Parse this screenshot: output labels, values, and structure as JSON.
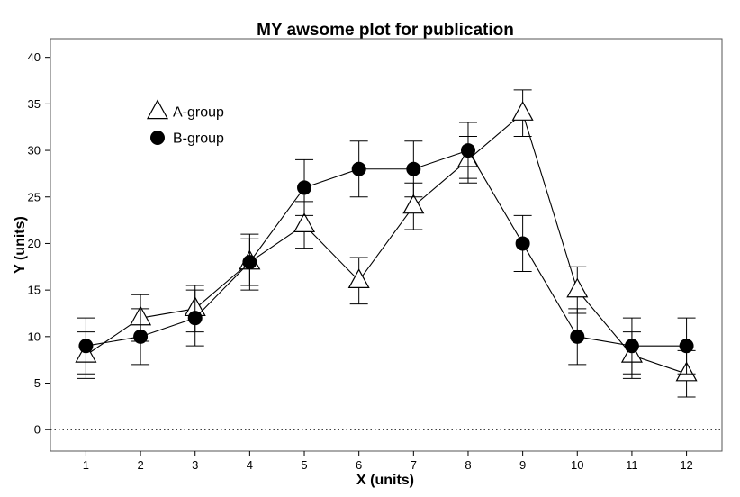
{
  "chart_data": {
    "type": "line",
    "title": "MY awsome plot for publication",
    "xlabel": "X (units)",
    "ylabel": "Y (units)",
    "x": [
      1,
      2,
      3,
      4,
      5,
      6,
      7,
      8,
      9,
      10,
      11,
      12
    ],
    "x_tick_labels": [
      "1",
      "2",
      "3",
      "4",
      "5",
      "6",
      "7",
      "8",
      "9",
      "10",
      "11",
      "12"
    ],
    "xlim": [
      0.35,
      12.65
    ],
    "ylim": [
      -2.3,
      42
    ],
    "y_ticks": [
      0,
      5,
      10,
      15,
      20,
      25,
      30,
      35,
      40
    ],
    "y_tick_labels": [
      "0",
      "5",
      "10",
      "15",
      "20",
      "25",
      "30",
      "35",
      "40"
    ],
    "reference_line": {
      "y": 0,
      "style": "dotted"
    },
    "grid": false,
    "legend_position": "top-left",
    "series": [
      {
        "name": "A-group",
        "marker": "open-triangle",
        "values": [
          8,
          12,
          13,
          18,
          22,
          16,
          24,
          29,
          34,
          15,
          8,
          6
        ],
        "error": [
          2.5,
          2.5,
          2.5,
          2.5,
          2.5,
          2.5,
          2.5,
          2.5,
          2.5,
          2.5,
          2.5,
          2.5
        ]
      },
      {
        "name": "B-group",
        "marker": "filled-circle",
        "values": [
          9,
          10,
          12,
          18,
          26,
          28,
          28,
          30,
          20,
          10,
          9,
          9
        ],
        "error": [
          3,
          3,
          3,
          3,
          3,
          3,
          3,
          3,
          3,
          3,
          3,
          3
        ]
      }
    ]
  }
}
